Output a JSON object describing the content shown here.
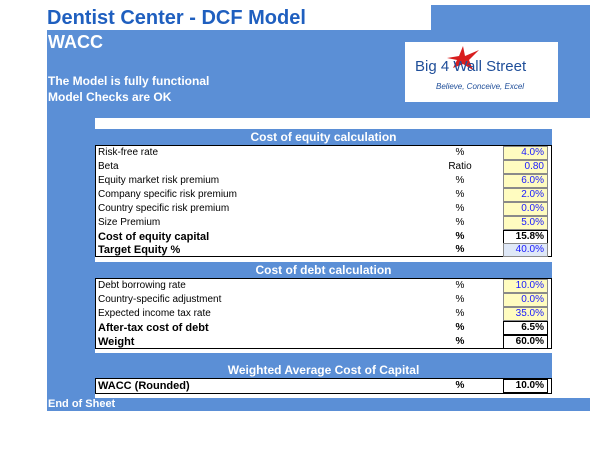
{
  "header": {
    "title": "Dentist Center - DCF Model",
    "section": "WACC",
    "status_line1": "The Model is fully functional",
    "status_line2": "Model Checks are OK"
  },
  "logo": {
    "name": "Big 4 Wall Street",
    "tagline": "Believe, Conceive, Excel"
  },
  "cost_of_equity": {
    "header": "Cost of equity calculation",
    "rows": [
      {
        "label": "Risk-free rate",
        "unit": "%",
        "value": "4.0%"
      },
      {
        "label": "Beta",
        "unit": "Ratio",
        "value": "0.80"
      },
      {
        "label": "Equity market risk premium",
        "unit": "%",
        "value": "6.0%"
      },
      {
        "label": "Company specific risk premium",
        "unit": "%",
        "value": "2.0%"
      },
      {
        "label": "Country specific risk premium",
        "unit": "%",
        "value": "0.0%"
      },
      {
        "label": "Size Premium",
        "unit": "%",
        "value": "5.0%"
      },
      {
        "label": "Cost of equity capital",
        "unit": "%",
        "value": "15.8%"
      },
      {
        "label": "Target Equity %",
        "unit": "%",
        "value": "40.0%"
      }
    ]
  },
  "cost_of_debt": {
    "header": "Cost of debt calculation",
    "rows": [
      {
        "label": "Debt borrowing rate",
        "unit": "%",
        "value": "10.0%"
      },
      {
        "label": "Country-specific adjustment",
        "unit": "%",
        "value": "0.0%"
      },
      {
        "label": "Expected income tax rate",
        "unit": "%",
        "value": "35.0%"
      },
      {
        "label": "After-tax cost of debt",
        "unit": "%",
        "value": "6.5%"
      },
      {
        "label": "Weight",
        "unit": "%",
        "value": "60.0%"
      }
    ]
  },
  "wacc": {
    "header": "Weighted Average Cost of Capital",
    "label": "WACC (Rounded)",
    "unit": "%",
    "value": "10.0%"
  },
  "footer": {
    "end_label": "End of Sheet"
  },
  "colors": {
    "band": "#5b8fd6",
    "title": "#1f5fbf",
    "input_fill": "#fffcc0",
    "input_text": "#1a1aff"
  }
}
